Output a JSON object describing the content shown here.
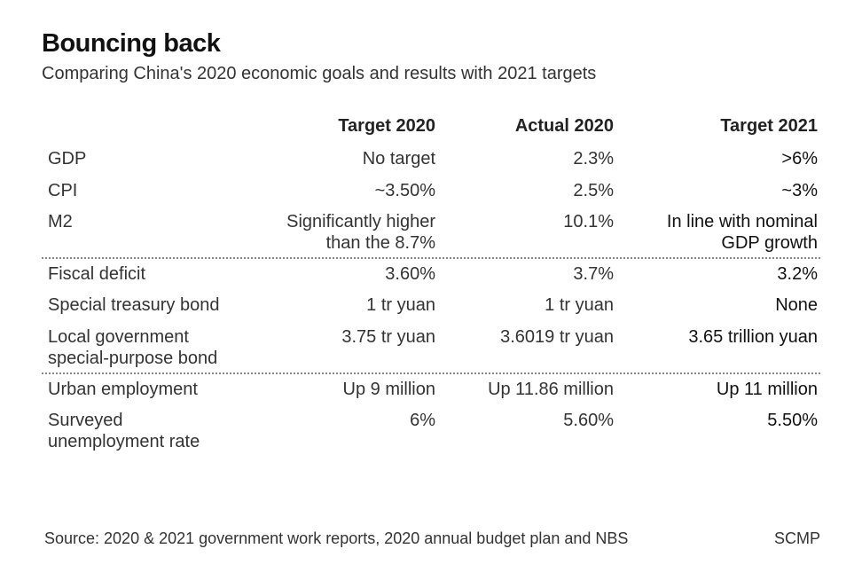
{
  "header": {
    "title": "Bouncing back",
    "subtitle": "Comparing China's 2020 economic goals and results with 2021 targets"
  },
  "footer": {
    "source": "Source: 2020 & 2021 government work reports, 2020 annual budget plan and NBS",
    "credit": "SCMP"
  },
  "chart_data": {
    "type": "table",
    "title": "Bouncing back",
    "subtitle": "Comparing China's 2020 economic goals and results with 2021 targets",
    "columns": [
      "",
      "Target 2020",
      "Actual 2020",
      "Target 2021"
    ],
    "groups": [
      {
        "rows": [
          {
            "label": [
              "GDP"
            ],
            "target_2020": [
              "No target"
            ],
            "actual_2020": [
              "2.3%"
            ],
            "target_2021": [
              "&gt;6%"
            ]
          },
          {
            "label": [
              "CPI"
            ],
            "target_2020": [
              "~3.50%"
            ],
            "actual_2020": [
              "2.5%"
            ],
            "target_2021": [
              "~3%"
            ]
          },
          {
            "label": [
              "M2"
            ],
            "target_2020": [
              "Significantly higher",
              "than the 8.7%"
            ],
            "actual_2020": [
              "10.1%"
            ],
            "target_2021": [
              "In line with nominal",
              "GDP  growth"
            ]
          }
        ]
      },
      {
        "rows": [
          {
            "label": [
              "Fiscal deficit"
            ],
            "target_2020": [
              "3.60%"
            ],
            "actual_2020": [
              "3.7%"
            ],
            "target_2021": [
              "3.2%"
            ]
          },
          {
            "label": [
              "Special treasury bond"
            ],
            "target_2020": [
              "1 tr yuan"
            ],
            "actual_2020": [
              "1 tr yuan"
            ],
            "target_2021": [
              "None"
            ]
          },
          {
            "label": [
              "Local government",
              "special-purpose bond"
            ],
            "target_2020": [
              "3.75 tr yuan"
            ],
            "actual_2020": [
              "3.6019 tr yuan"
            ],
            "target_2021": [
              "3.65 trillion yuan"
            ]
          }
        ]
      },
      {
        "rows": [
          {
            "label": [
              "Urban employment"
            ],
            "target_2020": [
              "Up 9 million"
            ],
            "actual_2020": [
              "Up 11.86 million"
            ],
            "target_2021": [
              "Up 11 million"
            ]
          },
          {
            "label": [
              "Surveyed",
              "unemployment rate"
            ],
            "target_2020": [
              "6%"
            ],
            "actual_2020": [
              "5.60%"
            ],
            "target_2021": [
              "5.50%"
            ]
          }
        ]
      }
    ]
  }
}
